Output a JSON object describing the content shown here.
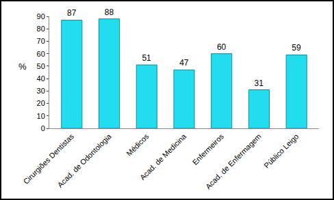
{
  "chart_data": {
    "type": "bar",
    "y_label": "%",
    "categories": [
      "Cirurgiões Dentistas",
      "Acad. de Odontologia",
      "Médicos",
      "Acad. de Medicina",
      "Enfermeiros",
      "Acad. de Enfermagem",
      "Público Leigo"
    ],
    "values": [
      87,
      88,
      51,
      47,
      60,
      31,
      59
    ],
    "color": "#22dded",
    "ylim": [
      0,
      90
    ],
    "yticks": [
      0,
      10,
      20,
      30,
      40,
      50,
      60,
      70,
      80,
      90
    ],
    "grid": false,
    "data_labels": true
  }
}
